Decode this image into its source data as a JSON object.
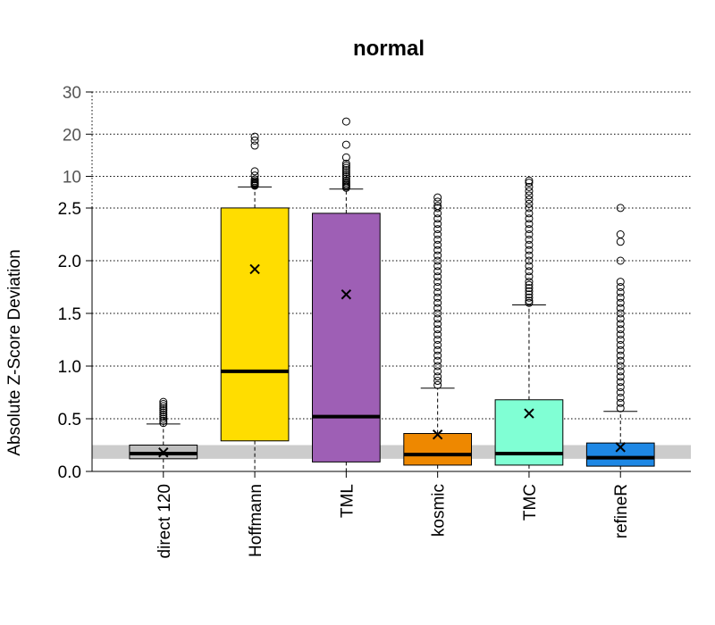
{
  "chart_data": {
    "type": "boxplot",
    "title": "normal",
    "ylabel": "Absolute Z-Score Deviation",
    "ylim": [
      0,
      30
    ],
    "y_axis_segments": [
      {
        "range": [
          0,
          2.5
        ],
        "ticks": [
          "0.0",
          "0.5",
          "1.0",
          "1.5",
          "2.0",
          "2.5"
        ]
      },
      {
        "range": [
          2.5,
          30
        ],
        "ticks": [
          "10",
          "20",
          "30"
        ]
      }
    ],
    "reference_band": [
      0.12,
      0.25
    ],
    "reference_band_color": "#cccccc",
    "grid": "dotted horizontal",
    "categories": [
      "direct 120",
      "Hoffmann",
      "TML",
      "kosmic",
      "TMC",
      "refineR"
    ],
    "boxes": [
      {
        "name": "direct 120",
        "color": "#bebebe",
        "whisker_low": 0.12,
        "q1": 0.12,
        "median": 0.17,
        "q3": 0.25,
        "whisker_high": 0.45,
        "mean": 0.18,
        "outliers": [
          0.46,
          0.48,
          0.5,
          0.52,
          0.54,
          0.56,
          0.58,
          0.6,
          0.62,
          0.64,
          0.66
        ]
      },
      {
        "name": "Hoffmann",
        "color": "#ffdd00",
        "whisker_low": 0.29,
        "q1": 0.29,
        "median": 0.95,
        "q3": 2.52,
        "whisker_high": 7.5,
        "mean": 1.92,
        "outliers": [
          7.8,
          8.0,
          8.2,
          8.4,
          8.6,
          8.9,
          9.3,
          10.2,
          11.2,
          17.3,
          18.5,
          19.4
        ]
      },
      {
        "name": "TML",
        "color": "#9e5fb5",
        "whisker_low": 0.09,
        "q1": 0.09,
        "median": 0.52,
        "q3": 2.45,
        "whisker_high": 7.0,
        "mean": 1.68,
        "outliers": [
          7.3,
          7.6,
          7.9,
          8.2,
          8.6,
          9.0,
          9.5,
          10.0,
          10.5,
          11.0,
          11.5,
          12.0,
          12.5,
          13.0,
          14.5,
          17.5,
          23.0
        ]
      },
      {
        "name": "kosmic",
        "color": "#ee8800",
        "whisker_low": 0.06,
        "q1": 0.06,
        "median": 0.16,
        "q3": 0.36,
        "whisker_high": 0.79,
        "mean": 0.35,
        "outliers": [
          0.82,
          0.86,
          0.9,
          0.95,
          1.0,
          1.05,
          1.1,
          1.15,
          1.2,
          1.25,
          1.3,
          1.35,
          1.4,
          1.45,
          1.5,
          1.55,
          1.6,
          1.65,
          1.7,
          1.75,
          1.8,
          1.85,
          1.9,
          1.95,
          2.0,
          2.05,
          2.1,
          2.15,
          2.2,
          2.25,
          2.3,
          2.35,
          2.4,
          2.45,
          2.5,
          3.0,
          4.0,
          5.0
        ]
      },
      {
        "name": "TMC",
        "color": "#80ffd4",
        "whisker_low": 0.06,
        "q1": 0.06,
        "median": 0.17,
        "q3": 0.68,
        "whisker_high": 1.58,
        "mean": 0.55,
        "outliers": [
          1.6,
          1.62,
          1.65,
          1.68,
          1.71,
          1.74,
          1.77,
          1.8,
          1.85,
          1.9,
          1.95,
          2.0,
          2.05,
          2.1,
          2.15,
          2.2,
          2.25,
          2.3,
          2.35,
          2.4,
          2.45,
          2.5,
          3.5,
          4.5,
          5.5,
          6.5,
          7.5,
          8.5,
          9.0
        ]
      },
      {
        "name": "refineR",
        "color": "#1e88e5",
        "whisker_low": 0.05,
        "q1": 0.05,
        "median": 0.13,
        "q3": 0.27,
        "whisker_high": 0.57,
        "mean": 0.23,
        "outliers": [
          0.6,
          0.65,
          0.7,
          0.75,
          0.8,
          0.85,
          0.9,
          0.95,
          1.0,
          1.05,
          1.1,
          1.15,
          1.2,
          1.25,
          1.3,
          1.35,
          1.4,
          1.45,
          1.5,
          1.55,
          1.6,
          1.65,
          1.7,
          1.75,
          1.8,
          2.0,
          2.18,
          2.25,
          2.52
        ]
      }
    ]
  }
}
